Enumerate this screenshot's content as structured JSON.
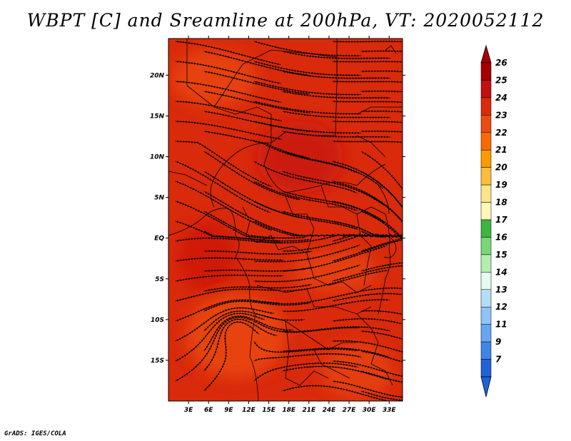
{
  "title": "WBPT [C] and Sreamline at 200hPa, VT: 2020052112",
  "footer": "GrADS: IGES/COLA",
  "map": {
    "lon_range": [
      0,
      35
    ],
    "lat_range": [
      -20,
      24.5
    ],
    "lat_ticks": [
      {
        "value": 20,
        "label": "20N"
      },
      {
        "value": 15,
        "label": "15N"
      },
      {
        "value": 10,
        "label": "10N"
      },
      {
        "value": 5,
        "label": "5N"
      },
      {
        "value": 0,
        "label": "EQ"
      },
      {
        "value": -5,
        "label": "5S"
      },
      {
        "value": -10,
        "label": "10S"
      },
      {
        "value": -15,
        "label": "15S"
      }
    ],
    "lon_ticks": [
      {
        "value": 3,
        "label": "3E"
      },
      {
        "value": 6,
        "label": "6E"
      },
      {
        "value": 9,
        "label": "9E"
      },
      {
        "value": 12,
        "label": "12E"
      },
      {
        "value": 15,
        "label": "15E"
      },
      {
        "value": 18,
        "label": "18E"
      },
      {
        "value": 21,
        "label": "21E"
      },
      {
        "value": 24,
        "label": "24E"
      },
      {
        "value": 27,
        "label": "27E"
      },
      {
        "value": 30,
        "label": "30E"
      },
      {
        "value": 33,
        "label": "33E"
      }
    ],
    "field_color": "#d92a0c"
  },
  "colorbar": {
    "levels": [
      {
        "label": "26",
        "color": "#a50000"
      },
      {
        "label": "25",
        "color": "#c21010"
      },
      {
        "label": "24",
        "color": "#d92a0c"
      },
      {
        "label": "23",
        "color": "#eb4b10"
      },
      {
        "label": "22",
        "color": "#f86a05"
      },
      {
        "label": "21",
        "color": "#fb9a00"
      },
      {
        "label": "20",
        "color": "#fcbd3a"
      },
      {
        "label": "19",
        "color": "#fde38a"
      },
      {
        "label": "18",
        "color": "#fdf7b8"
      },
      {
        "label": "17",
        "color": "#3fb43f"
      },
      {
        "label": "16",
        "color": "#78d776"
      },
      {
        "label": "15",
        "color": "#b3eeb0"
      },
      {
        "label": "14",
        "color": "#e3fbf0"
      },
      {
        "label": "13",
        "color": "#b6dcf8"
      },
      {
        "label": "12",
        "color": "#8ec4f5"
      },
      {
        "label": "11",
        "color": "#66a6f0"
      },
      {
        "label": "9",
        "color": "#3d86e8"
      },
      {
        "label": "7",
        "color": "#1f62d6"
      }
    ]
  }
}
